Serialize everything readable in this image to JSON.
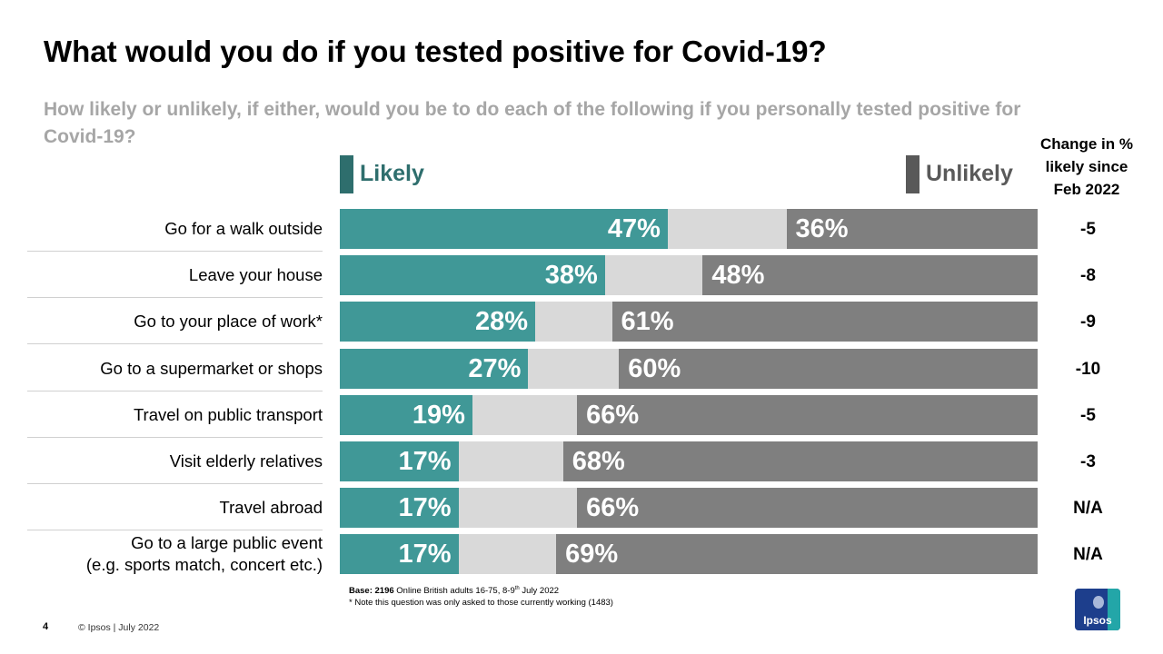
{
  "title": "What would you do if you tested positive for Covid-19?",
  "subtitle": "How likely or unlikely, if either, would you be to do each of the following if you personally tested positive for Covid-19?",
  "legend": {
    "likely": "Likely",
    "unlikely": "Unlikely"
  },
  "change_header": {
    "line1": "Change in %",
    "line2": "likely since",
    "line3": "Feb 2022"
  },
  "colors": {
    "likely": "#409897",
    "neither": "#d9d9d9",
    "unlikely": "#7f7f7f",
    "likely_legend": "#2e6e6d",
    "unlikely_legend": "#595959"
  },
  "chart_data": {
    "type": "bar",
    "orientation": "horizontal-stacked",
    "categories": [
      "Go for a walk outside",
      "Leave your house",
      "Go to your place of work*",
      "Go to a supermarket or shops",
      "Travel on public transport",
      "Visit elderly relatives",
      "Travel abroad",
      [
        "Go to a large public event",
        "(e.g. sports match, concert etc.)"
      ]
    ],
    "series": [
      {
        "name": "Likely",
        "values": [
          47,
          38,
          28,
          27,
          19,
          17,
          17,
          17
        ],
        "labels": [
          "47%",
          "38%",
          "28%",
          "27%",
          "19%",
          "17%",
          "17%",
          "17%"
        ]
      },
      {
        "name": "Unlikely",
        "values": [
          36,
          48,
          61,
          60,
          66,
          68,
          66,
          69
        ],
        "labels": [
          "36%",
          "48%",
          "61%",
          "60%",
          "66%",
          "68%",
          "66%",
          "69%"
        ]
      }
    ],
    "change_since_feb_2022": [
      "-5",
      "-8",
      "-9",
      "-10",
      "-5",
      "-3",
      "N/A",
      "N/A"
    ],
    "xlim": [
      0,
      100
    ]
  },
  "base_note": {
    "base_label": "Base:",
    "base_count": "2196",
    "base_text": " Online British adults 16-75, 8-9",
    "base_sup": "th",
    "base_tail": " July 2022",
    "note": "* Note this question was only asked to those currently working (1483)"
  },
  "footer": {
    "page_number": "4",
    "copyright": "© Ipsos | July 2022"
  },
  "logo_text": "Ipsos"
}
